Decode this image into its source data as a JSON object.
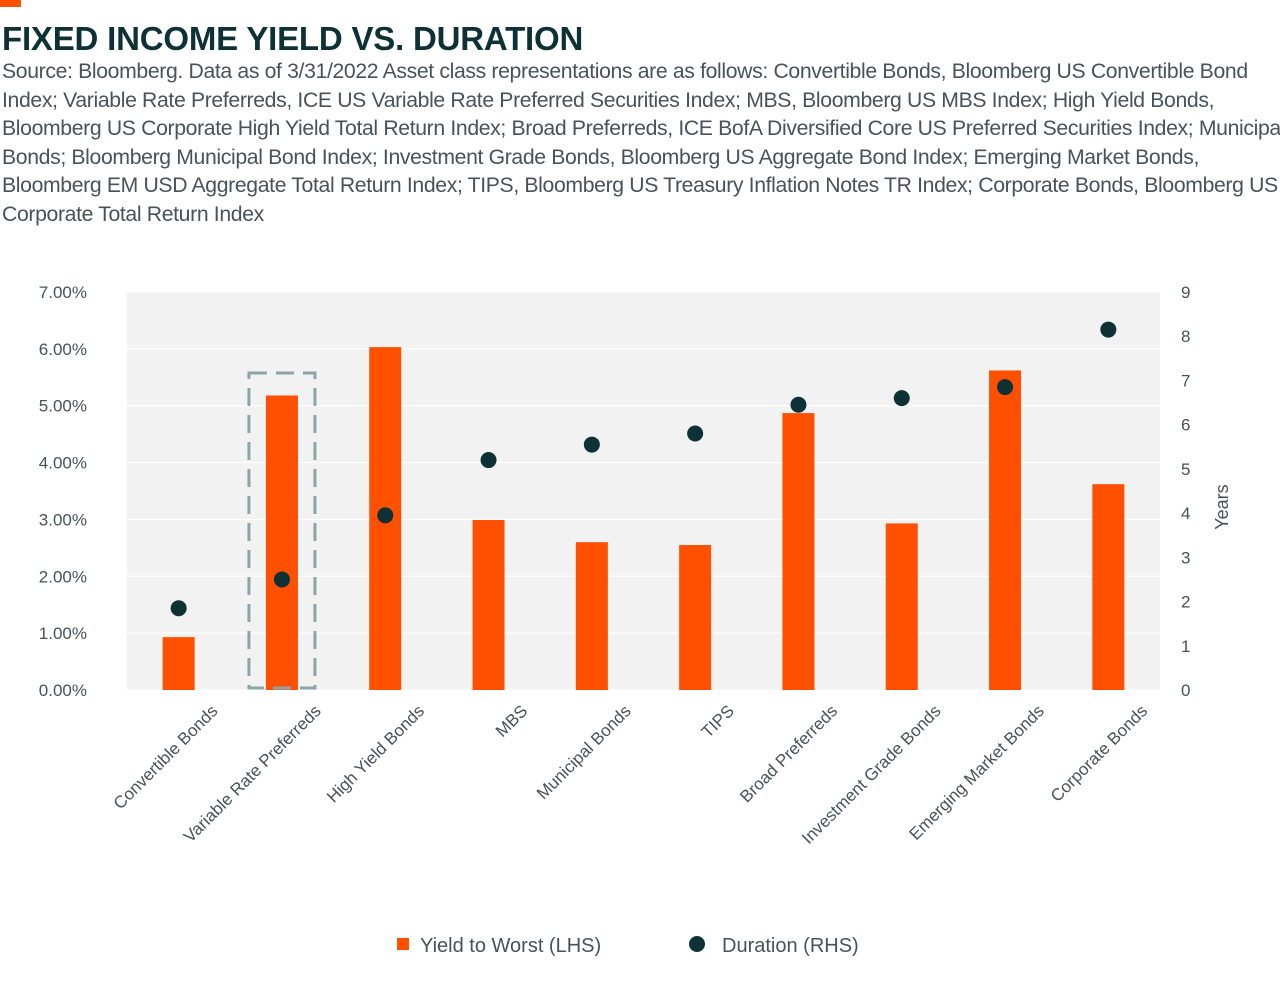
{
  "header": {
    "title": "FIXED INCOME YIELD VS. DURATION",
    "source": "Source: Bloomberg. Data as of 3/31/2022 Asset class representations are as follows: Convertible Bonds, Bloomberg US Convertible Bond Index; Variable Rate Preferreds, ICE US Variable Rate Preferred Securities Index; MBS, Bloomberg US MBS Index; High Yield Bonds, Bloomberg US Corporate High Yield Total Return Index; Broad Preferreds, ICE BofA Diversified Core US Preferred Securities Index; Municipal Bonds; Bloomberg Municipal Bond Index; Investment Grade Bonds, Bloomberg US Aggregate Bond Index; Emerging Market Bonds, Bloomberg EM USD Aggregate Total Return Index; TIPS, Bloomberg US Treasury Inflation Notes TR Index; Corporate Bonds, Bloomberg US Corporate Total Return Index"
  },
  "colors": {
    "accent": "#fe5000",
    "bar": "#fe5000",
    "dot": "#0d3135",
    "title": "#0d3135",
    "text": "#47525a",
    "plot_bg": "#f2f2f2",
    "highlight_box": "#8aa5a8"
  },
  "chart_data": {
    "type": "bar",
    "categories": [
      "Convertible Bonds",
      "Variable Rate Preferreds",
      "High Yield Bonds",
      "MBS",
      "Municipal Bonds",
      "TIPS",
      "Broad Preferreds",
      "Investment Grade Bonds",
      "Emerging Market Bonds",
      "Corporate Bonds"
    ],
    "series": [
      {
        "name": "Yield to Worst (LHS)",
        "type": "bar",
        "axis": "left",
        "values": [
          0.93,
          5.18,
          6.03,
          2.99,
          2.6,
          2.55,
          4.87,
          2.93,
          5.62,
          3.62
        ]
      },
      {
        "name": "Duration (RHS)",
        "type": "scatter",
        "axis": "right",
        "values": [
          1.85,
          2.5,
          3.95,
          5.2,
          5.55,
          5.8,
          6.45,
          6.6,
          6.85,
          8.15
        ]
      }
    ],
    "y_left": {
      "min": 0,
      "max": 7,
      "ticks": [
        "0.00%",
        "1.00%",
        "2.00%",
        "3.00%",
        "4.00%",
        "5.00%",
        "6.00%",
        "7.00%"
      ]
    },
    "y_right": {
      "min": 0,
      "max": 9,
      "ticks": [
        "0",
        "1",
        "2",
        "3",
        "4",
        "5",
        "6",
        "7",
        "8",
        "9"
      ],
      "label": "Years"
    },
    "highlighted_category": "Variable Rate Preferreds",
    "grid": true,
    "legend_position": "bottom"
  }
}
